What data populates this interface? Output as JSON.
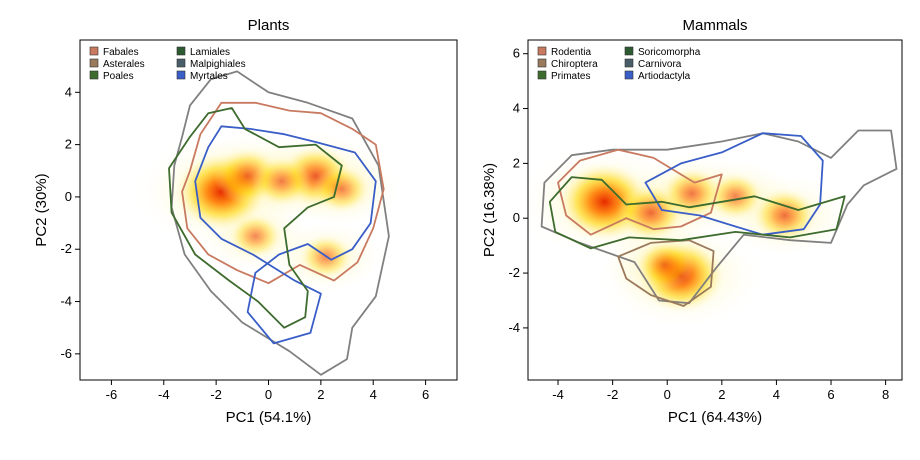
{
  "chart_data": [
    {
      "type": "heatmap",
      "title": "Plants",
      "xlabel": "PC1 (54.1%)",
      "ylabel": "PC2 (30%)",
      "xlim": [
        -7.2,
        7.2
      ],
      "ylim": [
        -7.0,
        6.0
      ],
      "xticks": [
        -6,
        -4,
        -2,
        0,
        2,
        4,
        6
      ],
      "yticks": [
        -6,
        -4,
        -2,
        0,
        2,
        4
      ],
      "legend_position": "top-left",
      "legend": [
        {
          "name": "Fabales",
          "color": "#c87a60"
        },
        {
          "name": "Asterales",
          "color": "#9a7a5c"
        },
        {
          "name": "Poales",
          "color": "#3e6b2e"
        },
        {
          "name": "Lamiales",
          "color": "#2e5a32"
        },
        {
          "name": "Malpighiales",
          "color": "#4a5e6a"
        },
        {
          "name": "Myrtales",
          "color": "#3a5ec8"
        }
      ],
      "density_hotspots": [
        {
          "x": -1.8,
          "y": 0.2,
          "intensity": 1.0
        },
        {
          "x": -0.8,
          "y": 0.8,
          "intensity": 0.55
        },
        {
          "x": 1.8,
          "y": 0.8,
          "intensity": 0.65
        },
        {
          "x": 0.5,
          "y": 0.6,
          "intensity": 0.4
        },
        {
          "x": 2.8,
          "y": 0.3,
          "intensity": 0.35
        },
        {
          "x": -0.5,
          "y": -1.5,
          "intensity": 0.3
        },
        {
          "x": 2.2,
          "y": -2.3,
          "intensity": 0.3
        }
      ],
      "contours": [
        {
          "series": "Outer hull",
          "color": "#808080",
          "points": [
            [
              -3.3,
              2.3
            ],
            [
              -3.0,
              3.5
            ],
            [
              -2.2,
              4.5
            ],
            [
              -1.2,
              4.8
            ],
            [
              0,
              4.0
            ],
            [
              1.5,
              3.6
            ],
            [
              3.2,
              3.0
            ],
            [
              4.2,
              1.2
            ],
            [
              4.6,
              -1.5
            ],
            [
              4.1,
              -3.8
            ],
            [
              3.2,
              -5.0
            ],
            [
              3.0,
              -6.2
            ],
            [
              2.0,
              -6.8
            ],
            [
              0.8,
              -5.9
            ],
            [
              -1.0,
              -4.8
            ],
            [
              -2.2,
              -3.6
            ],
            [
              -3.2,
              -2.2
            ],
            [
              -3.7,
              -0.4
            ],
            [
              -3.6,
              1.2
            ]
          ]
        },
        {
          "series": "Fabales",
          "color": "#c87a60",
          "points": [
            [
              -3.0,
              1.0
            ],
            [
              -2.6,
              2.4
            ],
            [
              -1.8,
              3.6
            ],
            [
              -0.5,
              3.6
            ],
            [
              0.8,
              3.3
            ],
            [
              2.0,
              3.2
            ],
            [
              3.2,
              2.6
            ],
            [
              4.1,
              2.0
            ],
            [
              4.4,
              0.3
            ],
            [
              4.0,
              -1.2
            ],
            [
              3.4,
              -2.5
            ],
            [
              2.5,
              -3.2
            ],
            [
              1.2,
              -2.6
            ],
            [
              0.0,
              -3.3
            ],
            [
              -1.2,
              -2.8
            ],
            [
              -2.3,
              -2.2
            ],
            [
              -3.1,
              -1.2
            ],
            [
              -3.3,
              0.2
            ]
          ]
        },
        {
          "series": "Myrtales",
          "color": "#3a5ec8",
          "points": [
            [
              -2.3,
              1.9
            ],
            [
              -1.8,
              2.7
            ],
            [
              -0.7,
              2.6
            ],
            [
              0.6,
              2.4
            ],
            [
              1.8,
              2.1
            ],
            [
              3.3,
              1.7
            ],
            [
              4.1,
              0.6
            ],
            [
              3.9,
              -1.0
            ],
            [
              3.2,
              -2.0
            ],
            [
              2.4,
              -2.4
            ],
            [
              1.5,
              -1.8
            ],
            [
              0.4,
              -2.2
            ],
            [
              -0.5,
              -2.9
            ],
            [
              -0.8,
              -4.4
            ],
            [
              0.2,
              -5.6
            ],
            [
              1.6,
              -5.2
            ],
            [
              2.0,
              -3.7
            ],
            [
              1.0,
              -3.2
            ],
            [
              -0.6,
              -2.2
            ],
            [
              -1.8,
              -1.6
            ],
            [
              -2.6,
              -0.8
            ],
            [
              -2.8,
              0.6
            ]
          ]
        },
        {
          "series": "Poales",
          "color": "#3e6b2e",
          "points": [
            [
              -3.8,
              1.1
            ],
            [
              -3.0,
              2.3
            ],
            [
              -2.3,
              3.2
            ],
            [
              -1.4,
              3.4
            ],
            [
              -0.9,
              2.6
            ],
            [
              0.4,
              1.9
            ],
            [
              1.8,
              2.0
            ],
            [
              2.8,
              1.2
            ],
            [
              2.5,
              0.0
            ],
            [
              1.5,
              -0.4
            ],
            [
              0.6,
              -1.2
            ],
            [
              0.8,
              -2.6
            ],
            [
              1.5,
              -3.6
            ],
            [
              1.4,
              -4.6
            ],
            [
              0.6,
              -5.0
            ],
            [
              -0.4,
              -4.0
            ],
            [
              -1.5,
              -3.2
            ],
            [
              -2.8,
              -2.2
            ],
            [
              -3.7,
              -0.6
            ]
          ]
        }
      ]
    },
    {
      "type": "heatmap",
      "title": "Mammals",
      "xlabel": "PC1 (64.43%)",
      "ylabel": "PC2 (16.38%)",
      "xlim": [
        -5.1,
        8.6
      ],
      "ylim": [
        -5.9,
        6.5
      ],
      "xticks": [
        -4,
        -2,
        0,
        2,
        4,
        6,
        8
      ],
      "yticks": [
        -4,
        -2,
        0,
        2,
        4,
        6
      ],
      "legend_position": "top-left",
      "legend": [
        {
          "name": "Rodentia",
          "color": "#c87a60"
        },
        {
          "name": "Chiroptera",
          "color": "#9a7a5c"
        },
        {
          "name": "Primates",
          "color": "#3e6b2e"
        },
        {
          "name": "Soricomorpha",
          "color": "#2e5a32"
        },
        {
          "name": "Carnivora",
          "color": "#4a5e6a"
        },
        {
          "name": "Artiodactyla",
          "color": "#3a5ec8"
        }
      ],
      "density_hotspots": [
        {
          "x": -2.3,
          "y": 0.6,
          "intensity": 1.0
        },
        {
          "x": 0.5,
          "y": -2.1,
          "intensity": 0.9
        },
        {
          "x": -0.6,
          "y": 0.2,
          "intensity": 0.55
        },
        {
          "x": 0.9,
          "y": 0.9,
          "intensity": 0.45
        },
        {
          "x": 2.5,
          "y": 0.8,
          "intensity": 0.35
        },
        {
          "x": 4.3,
          "y": 0.1,
          "intensity": 0.5
        },
        {
          "x": -0.1,
          "y": -1.7,
          "intensity": 0.4
        }
      ],
      "contours": [
        {
          "series": "Outer hull",
          "color": "#808080",
          "points": [
            [
              -4.5,
              1.3
            ],
            [
              -3.5,
              2.3
            ],
            [
              -2.0,
              2.5
            ],
            [
              0.0,
              2.5
            ],
            [
              2.0,
              2.8
            ],
            [
              3.5,
              3.1
            ],
            [
              4.8,
              2.8
            ],
            [
              6.0,
              2.2
            ],
            [
              7.0,
              3.2
            ],
            [
              8.2,
              3.2
            ],
            [
              8.4,
              1.8
            ],
            [
              7.2,
              1.2
            ],
            [
              6.6,
              0.5
            ],
            [
              6.0,
              -0.9
            ],
            [
              4.5,
              -0.8
            ],
            [
              2.8,
              -0.6
            ],
            [
              1.8,
              -1.8
            ],
            [
              0.8,
              -3.1
            ],
            [
              -0.3,
              -3.0
            ],
            [
              -1.2,
              -1.6
            ],
            [
              -3.2,
              -0.9
            ],
            [
              -4.6,
              -0.3
            ]
          ]
        },
        {
          "series": "Rodentia",
          "color": "#c87a60",
          "points": [
            [
              -4.0,
              1.3
            ],
            [
              -3.2,
              2.1
            ],
            [
              -1.8,
              2.5
            ],
            [
              -0.5,
              2.2
            ],
            [
              1.0,
              1.3
            ],
            [
              2.0,
              1.6
            ],
            [
              1.6,
              0.2
            ],
            [
              0.5,
              -0.3
            ],
            [
              -0.5,
              -0.4
            ],
            [
              -1.5,
              0.0
            ],
            [
              -2.8,
              -0.6
            ],
            [
              -3.7,
              0.1
            ]
          ]
        },
        {
          "series": "Chiroptera",
          "color": "#9a7a5c",
          "points": [
            [
              -1.8,
              -1.4
            ],
            [
              -0.6,
              -0.9
            ],
            [
              0.8,
              -0.8
            ],
            [
              1.7,
              -1.2
            ],
            [
              1.6,
              -2.5
            ],
            [
              0.6,
              -3.2
            ],
            [
              -0.6,
              -2.8
            ],
            [
              -1.5,
              -2.2
            ]
          ]
        },
        {
          "series": "Artiodactyla",
          "color": "#3a5ec8",
          "points": [
            [
              -0.8,
              1.3
            ],
            [
              0.5,
              2.0
            ],
            [
              2.0,
              2.4
            ],
            [
              3.5,
              3.1
            ],
            [
              4.9,
              3.0
            ],
            [
              5.7,
              2.1
            ],
            [
              5.6,
              0.5
            ],
            [
              5.0,
              -0.4
            ],
            [
              3.5,
              -0.6
            ],
            [
              2.5,
              -0.3
            ],
            [
              1.2,
              0.1
            ],
            [
              -0.2,
              0.3
            ]
          ]
        },
        {
          "series": "Primates",
          "color": "#3e6b2e",
          "points": [
            [
              -4.3,
              0.6
            ],
            [
              -3.5,
              1.5
            ],
            [
              -2.4,
              1.4
            ],
            [
              -1.5,
              0.5
            ],
            [
              -0.2,
              0.6
            ],
            [
              0.8,
              0.4
            ],
            [
              2.0,
              0.6
            ],
            [
              3.2,
              0.8
            ],
            [
              4.8,
              0.3
            ],
            [
              6.5,
              0.8
            ],
            [
              6.2,
              -0.4
            ],
            [
              4.5,
              -0.7
            ],
            [
              2.5,
              -0.5
            ],
            [
              0.5,
              -0.8
            ],
            [
              -1.4,
              -0.7
            ],
            [
              -2.8,
              -1.1
            ],
            [
              -4.1,
              -0.5
            ]
          ]
        }
      ]
    }
  ]
}
